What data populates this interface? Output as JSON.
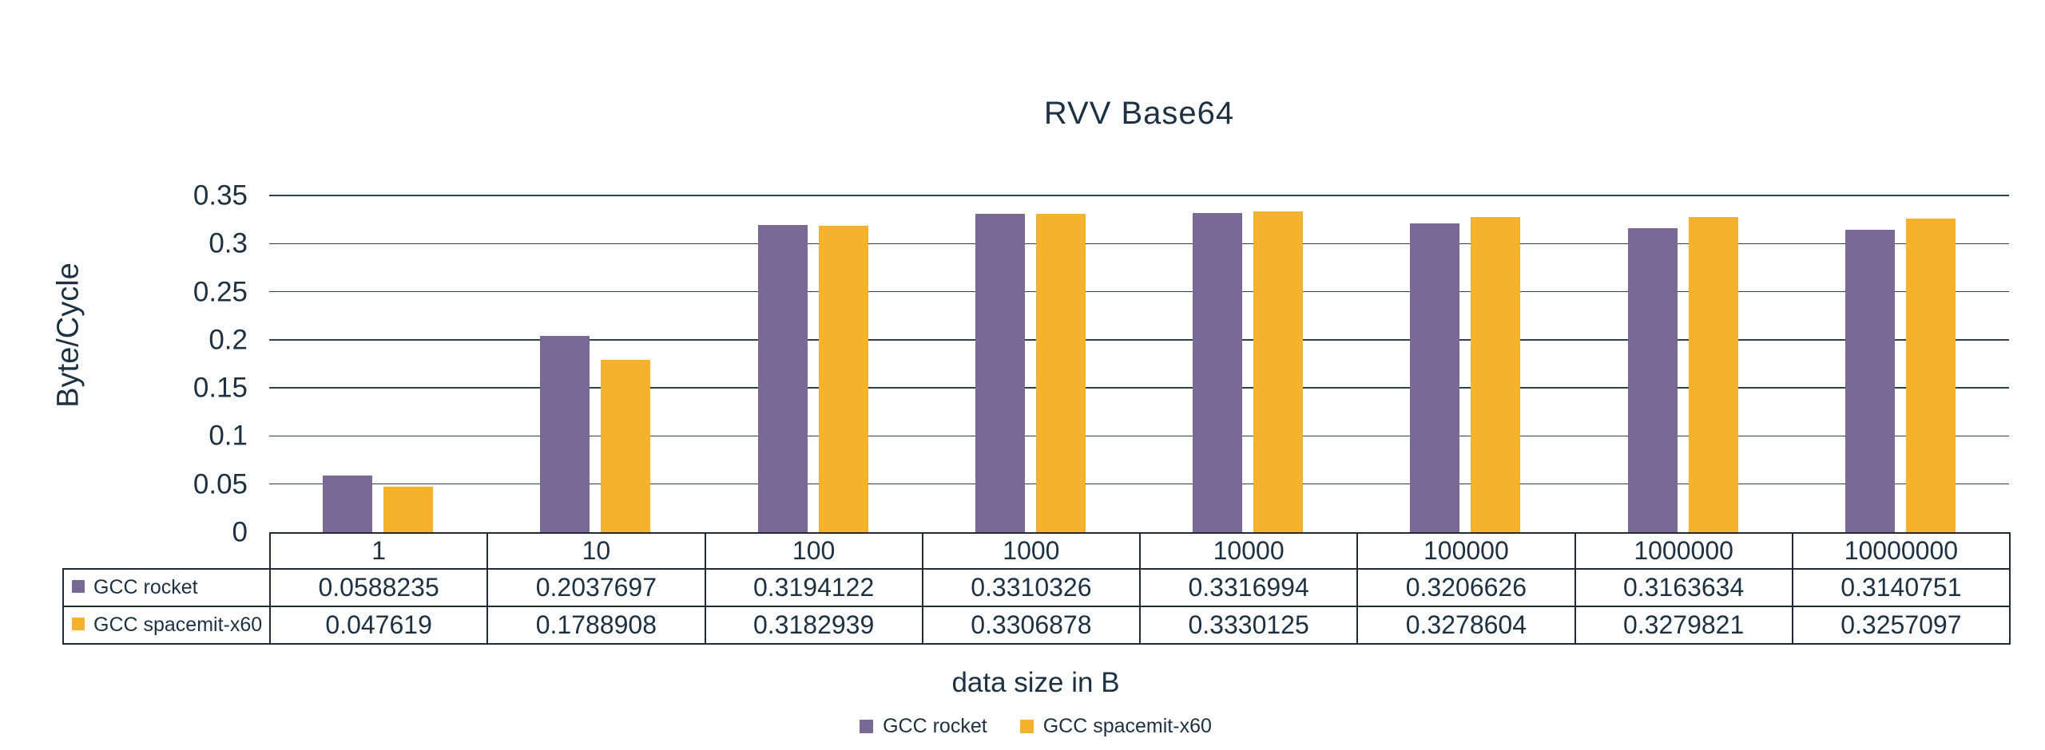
{
  "colors": {
    "text": "#1D3140",
    "gridline": "#2D4151",
    "table_border": "#202B33",
    "background": "#FFFFFF",
    "series_gcc_rocket": "#786A94",
    "series_gcc_spacemit_x60": "#F5B32D"
  },
  "chart_data": {
    "type": "bar",
    "title": "RVV Base64",
    "xlabel": "data size in B",
    "ylabel": "Byte/Cycle",
    "categories": [
      "1",
      "10",
      "100",
      "1000",
      "10000",
      "100000",
      "1000000",
      "10000000"
    ],
    "series": [
      {
        "name": "GCC rocket",
        "color": "#786A94",
        "values": [
          0.0588235,
          0.2037697,
          0.3194122,
          0.3310326,
          0.3316994,
          0.3206626,
          0.3163634,
          0.3140751
        ]
      },
      {
        "name": "GCC spacemit-x60",
        "color": "#F5B32D",
        "values": [
          0.047619,
          0.1788908,
          0.3182939,
          0.3306878,
          0.3330125,
          0.3278604,
          0.3279821,
          0.3257097
        ]
      }
    ],
    "ylim": [
      0,
      0.35
    ],
    "yticks": [
      0,
      0.05,
      0.1,
      0.15,
      0.2,
      0.25,
      0.3,
      0.35
    ],
    "grid": true,
    "legend_position": "bottom",
    "data_table_shown": true
  }
}
